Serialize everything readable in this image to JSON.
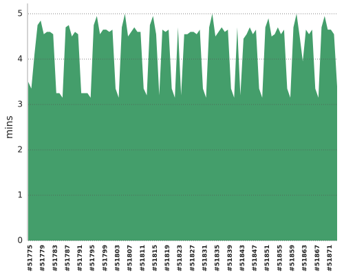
{
  "chart_data": {
    "type": "area",
    "ylabel": "mins",
    "color": "#449e6b",
    "categories": [
      "#51775",
      null,
      null,
      null,
      "#51779",
      null,
      null,
      null,
      "#51783",
      null,
      null,
      null,
      "#51787",
      null,
      null,
      null,
      "#51791",
      null,
      null,
      null,
      "#51795",
      null,
      null,
      null,
      "#51799",
      null,
      null,
      null,
      "#51803",
      null,
      null,
      null,
      "#51807",
      null,
      null,
      null,
      "#51811",
      null,
      null,
      null,
      "#51815",
      null,
      null,
      null,
      "#51819",
      null,
      null,
      null,
      "#51823",
      null,
      null,
      null,
      "#51827",
      null,
      null,
      null,
      "#51831",
      null,
      null,
      null,
      "#51835",
      null,
      null,
      null,
      "#51839",
      null,
      null,
      null,
      "#51843",
      null,
      null,
      null,
      "#51847",
      null,
      null,
      null,
      "#51851",
      null,
      null,
      null,
      "#51855",
      null,
      null,
      null,
      "#51859",
      null,
      null,
      null,
      "#51863",
      null,
      null,
      null,
      "#51867",
      null,
      null,
      null,
      "#51871",
      null,
      null,
      null
    ],
    "values": [
      3.5,
      3.35,
      4.1,
      4.75,
      4.85,
      4.55,
      4.6,
      4.6,
      4.55,
      3.25,
      3.25,
      3.15,
      4.7,
      4.75,
      4.5,
      4.6,
      4.55,
      3.25,
      3.25,
      3.25,
      3.15,
      4.75,
      4.95,
      4.55,
      4.65,
      4.65,
      4.6,
      4.65,
      3.35,
      3.15,
      4.7,
      5.0,
      4.5,
      4.6,
      4.7,
      4.6,
      4.6,
      3.35,
      3.2,
      4.75,
      4.95,
      4.55,
      3.2,
      4.65,
      4.6,
      4.65,
      3.35,
      3.15,
      4.7,
      3.2,
      4.55,
      4.55,
      4.6,
      4.6,
      4.55,
      4.65,
      3.35,
      3.15,
      4.7,
      5.0,
      4.5,
      4.6,
      4.7,
      4.6,
      4.65,
      3.35,
      3.15,
      4.7,
      3.2,
      4.45,
      4.55,
      4.7,
      4.55,
      4.65,
      3.35,
      3.15,
      4.7,
      4.9,
      4.5,
      4.55,
      4.7,
      4.55,
      4.65,
      3.35,
      3.15,
      4.7,
      5.0,
      4.5,
      3.95,
      4.65,
      4.55,
      4.65,
      3.35,
      3.15,
      4.7,
      4.95,
      4.65,
      4.65,
      4.55,
      3.4
    ],
    "ylim": [
      0,
      5
    ],
    "yticks": [
      0,
      1,
      2,
      3,
      4,
      5
    ],
    "grid": true
  }
}
